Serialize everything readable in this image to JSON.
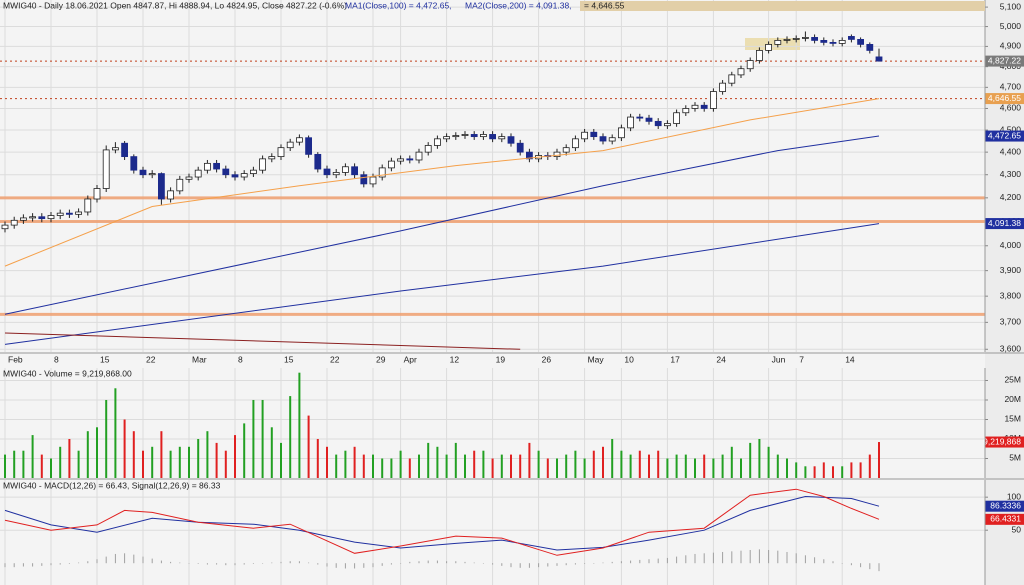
{
  "chart_data": [
    {
      "type": "candlestick",
      "header": "MWIG40 - Daily 18.06.2021 Open 4847.87, Hi 4888.94, Lo 4824.95, Close 4827.22 (-0.6%)",
      "header_ma": [
        "MA1(Close,100) = 4,472.65,",
        "MA2(Close,200) = 4,091.38,",
        "= 4,646.55"
      ],
      "log": true,
      "grid": true,
      "ylim": [
        3590,
        5137
      ],
      "yticks": [
        {
          "value": 3600,
          "label": "3,600"
        },
        {
          "value": 3700,
          "label": "3,700"
        },
        {
          "value": 3800,
          "label": "3,800"
        },
        {
          "value": 3900,
          "label": "3,900"
        },
        {
          "value": 4000,
          "label": "4,000"
        },
        {
          "value": 4100,
          "label": "4,100"
        },
        {
          "value": 4200,
          "label": "4,200"
        },
        {
          "value": 4300,
          "label": "4,300"
        },
        {
          "value": 4400,
          "label": "4,400"
        },
        {
          "value": 4500,
          "label": "4,500"
        },
        {
          "value": 4600,
          "label": "4,600"
        },
        {
          "value": 4700,
          "label": "4,700"
        },
        {
          "value": 4800,
          "label": "4,800"
        },
        {
          "value": 4900,
          "label": "4,900"
        },
        {
          "value": 5000,
          "label": "5,000"
        },
        {
          "value": 5100,
          "label": "5,100"
        }
      ],
      "xticks": [
        {
          "value": 0,
          "label": "Feb"
        },
        {
          "value": 5,
          "label": "8"
        },
        {
          "value": 10,
          "label": "15"
        },
        {
          "value": 15,
          "label": "22"
        },
        {
          "value": 20,
          "label": "Mar"
        },
        {
          "value": 25,
          "label": "8"
        },
        {
          "value": 30,
          "label": "15"
        },
        {
          "value": 35,
          "label": "22"
        },
        {
          "value": 40,
          "label": "29"
        },
        {
          "value": 43,
          "label": "Apr"
        },
        {
          "value": 48,
          "label": "12"
        },
        {
          "value": 53,
          "label": "19"
        },
        {
          "value": 58,
          "label": "26"
        },
        {
          "value": 63,
          "label": "May"
        },
        {
          "value": 67,
          "label": "10"
        },
        {
          "value": 72,
          "label": "17"
        },
        {
          "value": 77,
          "label": "24"
        },
        {
          "value": 83,
          "label": "Jun"
        },
        {
          "value": 86,
          "label": "7"
        },
        {
          "value": 91,
          "label": "14"
        }
      ],
      "up_color": "#ffffff",
      "down_color": "#1c2a8c",
      "open": [
        4070,
        4085,
        4105,
        4115,
        4120,
        4112,
        4125,
        4135,
        4130,
        4140,
        4195,
        4240,
        4410,
        4440,
        4380,
        4320,
        4300,
        4305,
        4195,
        4230,
        4280,
        4290,
        4320,
        4350,
        4325,
        4300,
        4290,
        4305,
        4320,
        4370,
        4380,
        4420,
        4445,
        4465,
        4390,
        4325,
        4300,
        4310,
        4335,
        4300,
        4260,
        4290,
        4330,
        4360,
        4370,
        4365,
        4400,
        4430,
        4460,
        4470,
        4475,
        4480,
        4470,
        4480,
        4460,
        4470,
        4440,
        4400,
        4370,
        4385,
        4380,
        4400,
        4420,
        4460,
        4490,
        4470,
        4450,
        4465,
        4510,
        4560,
        4555,
        4540,
        4520,
        4530,
        4580,
        4600,
        4615,
        4600,
        4680,
        4720,
        4760,
        4790,
        4830,
        4880,
        4910,
        4930,
        4935,
        4940,
        4945,
        4930,
        4920,
        4915,
        4950,
        4935,
        4910,
        4847.87
      ],
      "high": [
        4100,
        4120,
        4130,
        4135,
        4135,
        4140,
        4150,
        4150,
        4155,
        4210,
        4255,
        4430,
        4445,
        4450,
        4390,
        4335,
        4320,
        4310,
        4245,
        4295,
        4305,
        4335,
        4365,
        4365,
        4340,
        4315,
        4320,
        4335,
        4385,
        4395,
        4435,
        4460,
        4480,
        4475,
        4400,
        4340,
        4325,
        4350,
        4350,
        4315,
        4305,
        4345,
        4375,
        4385,
        4385,
        4415,
        4445,
        4475,
        4485,
        4490,
        4495,
        4495,
        4495,
        4495,
        4485,
        4485,
        4455,
        4415,
        4400,
        4400,
        4415,
        4435,
        4475,
        4505,
        4505,
        4485,
        4480,
        4525,
        4575,
        4575,
        4570,
        4555,
        4545,
        4595,
        4615,
        4630,
        4630,
        4695,
        4735,
        4775,
        4805,
        4845,
        4895,
        4925,
        4945,
        4950,
        4955,
        4975,
        4960,
        4945,
        4935,
        4945,
        4960,
        4945,
        4920,
        4888.94
      ],
      "low": [
        4055,
        4070,
        4090,
        4100,
        4097,
        4097,
        4110,
        4115,
        4115,
        4125,
        4180,
        4225,
        4395,
        4365,
        4305,
        4285,
        4285,
        4170,
        4180,
        4215,
        4265,
        4275,
        4305,
        4310,
        4285,
        4275,
        4275,
        4290,
        4305,
        4355,
        4365,
        4405,
        4430,
        4375,
        4310,
        4285,
        4285,
        4295,
        4285,
        4245,
        4245,
        4275,
        4315,
        4345,
        4350,
        4350,
        4385,
        4415,
        4445,
        4455,
        4460,
        4455,
        4455,
        4445,
        4445,
        4425,
        4385,
        4355,
        4355,
        4365,
        4365,
        4385,
        4405,
        4445,
        4455,
        4435,
        4435,
        4450,
        4495,
        4540,
        4525,
        4505,
        4505,
        4515,
        4565,
        4585,
        4585,
        4585,
        4665,
        4705,
        4745,
        4775,
        4815,
        4865,
        4895,
        4915,
        4920,
        4925,
        4915,
        4905,
        4900,
        4900,
        4920,
        4895,
        4865,
        4824.95
      ],
      "close": [
        4085,
        4105,
        4115,
        4120,
        4112,
        4125,
        4135,
        4130,
        4140,
        4195,
        4240,
        4410,
        4420,
        4380,
        4320,
        4300,
        4305,
        4195,
        4230,
        4280,
        4290,
        4320,
        4350,
        4325,
        4300,
        4290,
        4305,
        4320,
        4370,
        4380,
        4420,
        4445,
        4465,
        4390,
        4325,
        4300,
        4310,
        4335,
        4300,
        4260,
        4290,
        4330,
        4360,
        4370,
        4365,
        4400,
        4430,
        4460,
        4470,
        4475,
        4480,
        4470,
        4480,
        4460,
        4470,
        4440,
        4400,
        4370,
        4385,
        4380,
        4400,
        4420,
        4460,
        4490,
        4470,
        4450,
        4465,
        4510,
        4560,
        4555,
        4540,
        4520,
        4530,
        4580,
        4600,
        4615,
        4600,
        4680,
        4720,
        4760,
        4790,
        4830,
        4880,
        4910,
        4930,
        4935,
        4940,
        4945,
        4930,
        4920,
        4915,
        4930,
        4935,
        4910,
        4880,
        4827.22
      ],
      "series": [
        {
          "color": "#2030a0",
          "x": [
            0,
            43,
            65,
            84,
            95
          ],
          "values": [
            3731,
            4061,
            4252,
            4407,
            4472.65
          ]
        },
        {
          "color": "#2030a0",
          "x": [
            0,
            43,
            65,
            95
          ],
          "values": [
            3618,
            3820,
            3918,
            4091.38
          ]
        },
        {
          "color": "#f5a04a",
          "x": [
            0,
            16,
            32,
            49,
            65,
            81,
            95
          ],
          "values": [
            3918,
            4163,
            4252,
            4340,
            4407,
            4547,
            4646.55
          ]
        },
        {
          "color": "#8b2020",
          "x": [
            0,
            56
          ],
          "values": [
            3660,
            3600
          ]
        }
      ],
      "hlines": [
        {
          "value": 4827.22,
          "color": "#c0401c",
          "dashed": true
        },
        {
          "value": 4646.55,
          "color": "#c0401c",
          "dashed": true
        },
        {
          "value": 4200,
          "color": "#f0a070",
          "dashed": false
        },
        {
          "value": 4100,
          "color": "#f0a070",
          "dashed": false
        },
        {
          "value": 3730,
          "color": "#f0a070",
          "dashed": false
        }
      ],
      "value_labels": [
        {
          "value": 4827.22,
          "label": "4,827.22",
          "color": "#7a7a7a"
        },
        {
          "value": 4646.55,
          "label": "4,646.55",
          "color": "#e8a050"
        },
        {
          "value": 4472.65,
          "label": "4,472.65",
          "color": "#2030a0"
        },
        {
          "value": 4091.38,
          "label": "4,091.38",
          "color": "#2030a0"
        }
      ]
    },
    {
      "type": "bar",
      "header": "MWIG40 - Volume = 9,219,868.00",
      "grid": true,
      "ylim": [
        0,
        28200000
      ],
      "yticks": [
        {
          "value": 5000000,
          "label": "5M"
        },
        {
          "value": 10000000,
          "label": "10M"
        },
        {
          "value": 15000000,
          "label": "15M"
        },
        {
          "value": 20000000,
          "label": "20M"
        },
        {
          "value": 25000000,
          "label": "25M"
        }
      ],
      "up_color": "#22a022",
      "down_color": "#e02020",
      "values": [
        6000000,
        7000000,
        7000000,
        11000000,
        6000000,
        5000000,
        8000000,
        10000000,
        7000000,
        12000000,
        13000000,
        20000000,
        23000000,
        15000000,
        12000000,
        7000000,
        8000000,
        12000000,
        7000000,
        8000000,
        8000000,
        10000000,
        12000000,
        9000000,
        7000000,
        11000000,
        14000000,
        20000000,
        20000000,
        13000000,
        9000000,
        21000000,
        27000000,
        16000000,
        10000000,
        8000000,
        6000000,
        7000000,
        8000000,
        6000000,
        6000000,
        5000000,
        5000000,
        7000000,
        5000000,
        6000000,
        9000000,
        8000000,
        6000000,
        9000000,
        6000000,
        7000000,
        7000000,
        5000000,
        6000000,
        6000000,
        6000000,
        9000000,
        7000000,
        5000000,
        5000000,
        6000000,
        7000000,
        5000000,
        7000000,
        8000000,
        10000000,
        7000000,
        6000000,
        7000000,
        6000000,
        7000000,
        5000000,
        6000000,
        6000000,
        5000000,
        6000000,
        5000000,
        6000000,
        8000000,
        5000000,
        9000000,
        10000000,
        8000000,
        6000000,
        5000000,
        4000000,
        3000000,
        3000000,
        4000000,
        3000000,
        3000000,
        4000000,
        4000000,
        6000000,
        9219868
      ],
      "value_labels": [
        {
          "value": 9219868,
          "label": "9,219,868",
          "color": "#e02020"
        }
      ]
    },
    {
      "type": "line",
      "header": "MWIG40 - MACD(12,26) = 66.43, Signal(12,26,9) = 86.33",
      "grid": true,
      "ylim": [
        -33,
        126
      ],
      "yticks": [
        50,
        100
      ],
      "histogram_color": "#a0a0a0",
      "histogram": [
        -6,
        -6,
        -5,
        -5,
        -4,
        -3,
        -2,
        -1,
        1,
        3,
        6,
        10,
        14,
        15,
        13,
        10,
        7,
        4,
        2,
        1,
        0,
        -1,
        -2,
        -2,
        -3,
        -3,
        -2,
        -1,
        0,
        1,
        2,
        3,
        3,
        1,
        -2,
        -5,
        -7,
        -8,
        -8,
        -7,
        -6,
        -4,
        -2,
        0,
        2,
        3,
        4,
        4,
        3,
        3,
        2,
        1,
        0,
        -2,
        -4,
        -6,
        -7,
        -7,
        -6,
        -5,
        -4,
        -3,
        -2,
        -1,
        0,
        1,
        2,
        3,
        4,
        5,
        6,
        7,
        8,
        10,
        12,
        14,
        15,
        16,
        17,
        18,
        19,
        20,
        21,
        20,
        19,
        17,
        15,
        12,
        9,
        6,
        3,
        0,
        -3,
        -6,
        -9,
        -12
      ],
      "series": [
        {
          "color": "#2030a0",
          "x": [
            0,
            5,
            10,
            16,
            21,
            27,
            32,
            38,
            43,
            49,
            54,
            60,
            65,
            70,
            76,
            81,
            87,
            92,
            95
          ],
          "values": [
            80,
            58,
            47,
            68,
            62,
            59,
            50,
            32,
            23,
            30,
            35,
            20,
            24,
            35,
            50,
            80,
            101,
            98,
            86.33
          ]
        },
        {
          "color": "#e02020",
          "x": [
            0,
            5,
            10,
            13,
            16,
            21,
            27,
            31,
            38,
            43,
            49,
            54,
            60,
            65,
            70,
            76,
            81,
            86,
            89,
            92,
            95
          ],
          "values": [
            65,
            50,
            58,
            80,
            77,
            62,
            53,
            59,
            15,
            26,
            41,
            38,
            12,
            23,
            47,
            53,
            103,
            112,
            101,
            83,
            66.43
          ]
        }
      ],
      "value_labels": [
        {
          "value": 86.3336,
          "label": "86.3336",
          "color": "#2030a0"
        },
        {
          "value": 66.4331,
          "label": "66.4331",
          "color": "#e02020"
        }
      ]
    }
  ]
}
